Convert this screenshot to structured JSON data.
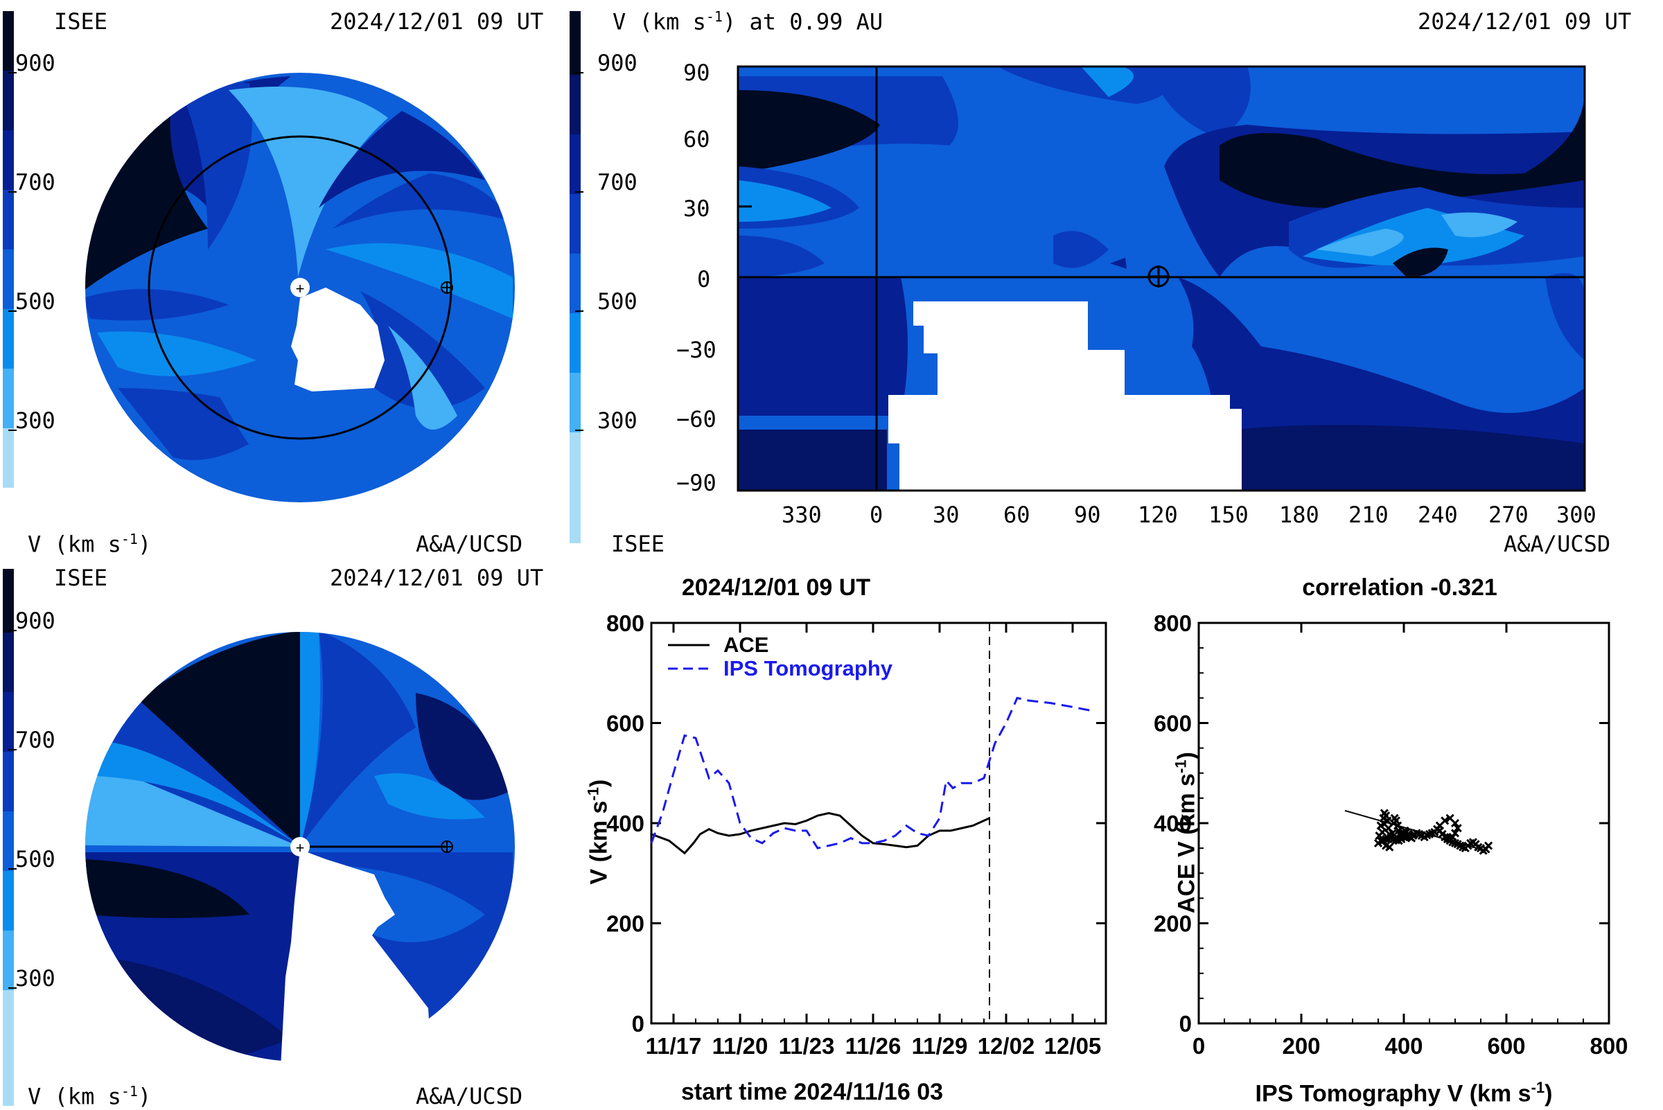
{
  "colors": {
    "v200": "#a8dcf6",
    "v300": "#44b0f5",
    "v400": "#0a8cee",
    "v500": "#0d5ed9",
    "v600": "#0a3bbd",
    "v700": "#061f93",
    "v800": "#041466",
    "v900": "#000a22"
  },
  "panel_tl": {
    "label_left": "ISEE",
    "timestamp": "2024/12/01 09 UT",
    "bottom_left": "V (km s",
    "bottom_left_sup": "-1",
    "bottom_left_close": ")",
    "bottom_right": "A&A/UCSD",
    "colorbar_ticks": [
      "900",
      "700",
      "500",
      "300"
    ]
  },
  "panel_tr": {
    "title": "V (km s",
    "title_sup": "-1",
    "title_rest": ") at 0.99 AU",
    "timestamp": "2024/12/01 09 UT",
    "bottom_left": "ISEE",
    "bottom_right": "A&A/UCSD",
    "colorbar_ticks": [
      "900",
      "700",
      "500",
      "300"
    ],
    "y_ticks": [
      "90",
      "60",
      "30",
      "0",
      "−30",
      "−60",
      "−90"
    ],
    "x_ticks": [
      "330",
      "0",
      "30",
      "60",
      "90",
      "120",
      "150",
      "180",
      "210",
      "240",
      "270",
      "300"
    ]
  },
  "panel_bl": {
    "label_left": "ISEE",
    "timestamp": "2024/12/01 09 UT",
    "bottom_left": "V (km s",
    "bottom_left_sup": "-1",
    "bottom_left_close": ")",
    "bottom_right": "A&A/UCSD",
    "colorbar_ticks": [
      "900",
      "700",
      "500",
      "300"
    ]
  },
  "chart_data": [
    {
      "type": "line",
      "title": "2024/12/01 09 UT",
      "xlabel": "start time 2024/11/16 03",
      "ylabel": "V (km s",
      "ylabel_sup": "-1",
      "ylabel_close": ")",
      "ylim": [
        0,
        800
      ],
      "xlim": [
        0,
        20.5
      ],
      "y_ticks": [
        "800",
        "600",
        "400",
        "200",
        "0"
      ],
      "x_ticks": [
        {
          "pos": 1,
          "label": "11/17"
        },
        {
          "pos": 4,
          "label": "11/20"
        },
        {
          "pos": 7,
          "label": "11/23"
        },
        {
          "pos": 10,
          "label": "11/26"
        },
        {
          "pos": 13,
          "label": "11/29"
        },
        {
          "pos": 16,
          "label": "12/02"
        },
        {
          "pos": 19,
          "label": "12/05"
        }
      ],
      "now_marker": 15.25,
      "series": [
        {
          "name": "ACE",
          "color": "#000000",
          "dash": "solid",
          "x": [
            0,
            0.8,
            1.5,
            1.9,
            2.2,
            2.6,
            3.0,
            3.5,
            4.0,
            4.5,
            5.0,
            5.5,
            6.0,
            6.5,
            7.0,
            7.5,
            8.0,
            8.5,
            9.0,
            9.5,
            10.0,
            10.5,
            11.0,
            11.5,
            12.0,
            12.5,
            13.0,
            13.5,
            14.0,
            14.5,
            15.0,
            15.25
          ],
          "y": [
            378,
            365,
            340,
            360,
            378,
            388,
            380,
            375,
            378,
            385,
            390,
            395,
            400,
            398,
            405,
            415,
            420,
            415,
            395,
            375,
            360,
            358,
            355,
            352,
            355,
            375,
            385,
            385,
            390,
            395,
            405,
            410
          ]
        },
        {
          "name": "IPS Tomography",
          "color": "#1a1aee",
          "dash": "dashed",
          "x": [
            0,
            0.5,
            1.0,
            1.5,
            2.0,
            2.3,
            2.6,
            3.0,
            3.5,
            4.0,
            4.5,
            5.0,
            5.5,
            6.0,
            6.5,
            7.0,
            7.5,
            8.0,
            8.5,
            9.0,
            9.5,
            10.0,
            10.5,
            11.0,
            11.5,
            12.0,
            12.5,
            13.0,
            13.3,
            13.6,
            14.0,
            14.5,
            15.0,
            15.5,
            16.0,
            16.5,
            17.0,
            18.0,
            19.0,
            19.8
          ],
          "y": [
            360,
            420,
            500,
            575,
            570,
            530,
            490,
            505,
            480,
            400,
            370,
            360,
            380,
            390,
            385,
            385,
            350,
            355,
            360,
            370,
            360,
            360,
            365,
            375,
            395,
            380,
            375,
            410,
            485,
            470,
            480,
            480,
            490,
            560,
            600,
            650,
            645,
            640,
            632,
            625
          ]
        }
      ]
    },
    {
      "type": "scatter",
      "title": "correlation -0.321",
      "xlabel": "IPS Tomography V (km s",
      "xlabel_sup": "-1",
      "xlabel_close": ")",
      "ylabel": "ACE V (km s",
      "ylabel_sup": "-1",
      "ylabel_close": ")",
      "xlim": [
        0,
        800
      ],
      "ylim": [
        0,
        800
      ],
      "x_ticks": [
        "0",
        "200",
        "400",
        "600",
        "800"
      ],
      "y_ticks": [
        "800",
        "600",
        "400",
        "200",
        "0"
      ],
      "fit_line": {
        "x": [
          285,
          560
        ],
        "y": [
          425,
          345
        ]
      },
      "points": {
        "x": [
          350,
          352,
          355,
          360,
          362,
          365,
          368,
          370,
          372,
          375,
          378,
          380,
          382,
          385,
          388,
          390,
          392,
          395,
          398,
          400,
          402,
          405,
          408,
          410,
          412,
          415,
          418,
          420,
          425,
          430,
          435,
          440,
          445,
          450,
          455,
          460,
          465,
          470,
          475,
          480,
          485,
          490,
          495,
          500,
          505,
          510,
          515,
          520,
          525,
          530,
          535,
          540,
          545,
          550,
          555,
          560,
          565,
          355,
          360,
          365,
          370,
          375,
          380,
          385,
          390,
          395,
          400,
          470,
          480,
          490,
          500,
          505,
          500,
          495,
          490,
          485,
          365,
          372,
          358,
          362
        ],
        "y": [
          360,
          375,
          395,
          410,
          420,
          415,
          405,
          390,
          378,
          372,
          380,
          400,
          410,
          405,
          395,
          385,
          378,
          372,
          375,
          380,
          385,
          382,
          378,
          375,
          372,
          370,
          375,
          378,
          380,
          378,
          375,
          372,
          376,
          378,
          380,
          382,
          388,
          385,
          378,
          372,
          368,
          365,
          362,
          360,
          358,
          355,
          352,
          350,
          355,
          360,
          362,
          358,
          352,
          350,
          345,
          348,
          355,
          365,
          365,
          368,
          368,
          370,
          368,
          366,
          365,
          368,
          372,
          395,
          405,
          410,
          400,
          390,
          380,
          372,
          368,
          372,
          355,
          352,
          382,
          398
        ]
      }
    }
  ]
}
